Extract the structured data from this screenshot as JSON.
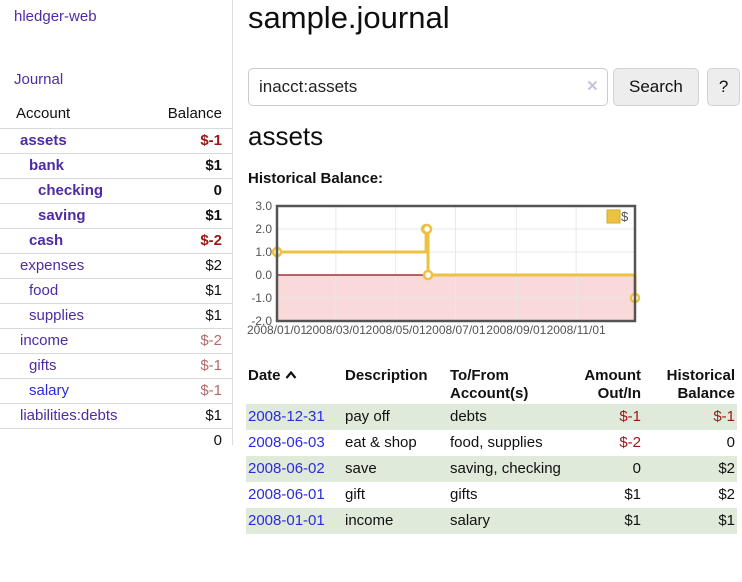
{
  "colors": {
    "link_purple": "#4f2ba5",
    "link_blue": "#2b2bdd",
    "negative_strong": "#9b1717",
    "negative_soft": "#b36a6a",
    "row_stripe_green": "#dfeada",
    "chart_series_yellow": "#edc240",
    "chart_negative_region_pink": "#f9d9d9",
    "chart_zero_line_red": "#871111"
  },
  "app": {
    "brand": "hledger-web",
    "nav": {
      "journal": "Journal"
    }
  },
  "sidebar": {
    "columns": {
      "account": "Account",
      "balance": "Balance"
    },
    "accounts": [
      {
        "name": "assets",
        "level": 1,
        "bold": true,
        "balance": "$-1"
      },
      {
        "name": "bank",
        "level": 2,
        "bold": true,
        "balance": "$1"
      },
      {
        "name": "checking",
        "level": 3,
        "bold": true,
        "balance": "0"
      },
      {
        "name": "saving",
        "level": 3,
        "bold": true,
        "balance": "$1"
      },
      {
        "name": "cash",
        "level": 2,
        "bold": true,
        "balance": "$-2"
      },
      {
        "name": "expenses",
        "level": 1,
        "bold": false,
        "balance": "$2"
      },
      {
        "name": "food",
        "level": 2,
        "bold": false,
        "balance": "$1"
      },
      {
        "name": "supplies",
        "level": 2,
        "bold": false,
        "balance": "$1"
      },
      {
        "name": "income",
        "level": 1,
        "bold": false,
        "balance": "$-2"
      },
      {
        "name": "gifts",
        "level": 2,
        "bold": false,
        "balance": "$-1"
      },
      {
        "name": "salary",
        "level": 2,
        "bold": false,
        "balance": "$-1",
        "unvisited": true
      },
      {
        "name": "liabilities:debts",
        "level": 1,
        "bold": false,
        "balance": "$1"
      }
    ],
    "total": "0"
  },
  "header": {
    "title": "sample.journal"
  },
  "search": {
    "value": "inacct:assets",
    "clear_label": "×",
    "search_button": "Search",
    "help_button": "?"
  },
  "account_page": {
    "heading": "assets",
    "chart_title": "Historical Balance:"
  },
  "chart_data": {
    "type": "line",
    "step": true,
    "title": "Historical Balance:",
    "series": [
      {
        "name": "$",
        "color": "#edc240",
        "points": [
          [
            "2008-01-01",
            1
          ],
          [
            "2008-06-01",
            2
          ],
          [
            "2008-06-02",
            2
          ],
          [
            "2008-06-03",
            0
          ],
          [
            "2008-12-31",
            -1
          ]
        ]
      }
    ],
    "xlim": [
      "2008-01-01",
      "2008-12-31"
    ],
    "ylim": [
      -2,
      3
    ],
    "y_ticks": [
      {
        "v": 3,
        "label": "3.0"
      },
      {
        "v": 2,
        "label": "2.0"
      },
      {
        "v": 1,
        "label": "1.0"
      },
      {
        "v": 0,
        "label": "0.0"
      },
      {
        "v": -1,
        "label": "-1.0"
      },
      {
        "v": -2,
        "label": "-2.0"
      }
    ],
    "x_ticks": [
      {
        "v": "2008-01-01",
        "label": "2008/01/01"
      },
      {
        "v": "2008-03-01",
        "label": "2008/03/01"
      },
      {
        "v": "2008-05-01",
        "label": "2008/05/01"
      },
      {
        "v": "2008-07-01",
        "label": "2008/07/01"
      },
      {
        "v": "2008-09-01",
        "label": "2008/09/01"
      },
      {
        "v": "2008-11-01",
        "label": "2008/11/01"
      }
    ],
    "legend": {
      "position": "top-right",
      "entries": [
        "$"
      ]
    },
    "grid": true,
    "negative_region_color": "#f9d9d9",
    "zero_line_color": "#871111",
    "border_color": "#545454",
    "gridline_color": "#e8e8e8",
    "tick_label_color": "#545454"
  },
  "register": {
    "columns": [
      {
        "label": "Date",
        "align": "left",
        "sorted": "ascending"
      },
      {
        "label": "Description",
        "align": "left"
      },
      {
        "label": "To/From Account(s)",
        "align": "left"
      },
      {
        "label": "Amount Out/In",
        "align": "right"
      },
      {
        "label": "Historical Balance",
        "align": "right"
      }
    ],
    "rows": [
      {
        "date": "2008-12-31",
        "description": "pay off",
        "accounts": "debts",
        "amount": "$-1",
        "balance": "$-1"
      },
      {
        "date": "2008-06-03",
        "description": "eat & shop",
        "accounts": "food, supplies",
        "amount": "$-2",
        "balance": "0"
      },
      {
        "date": "2008-06-02",
        "description": "save",
        "accounts": "saving, checking",
        "amount": "0",
        "balance": "$2"
      },
      {
        "date": "2008-06-01",
        "description": "gift",
        "accounts": "gifts",
        "amount": "$1",
        "balance": "$2"
      },
      {
        "date": "2008-01-01",
        "description": "income",
        "accounts": "salary",
        "amount": "$1",
        "balance": "$1"
      }
    ]
  }
}
